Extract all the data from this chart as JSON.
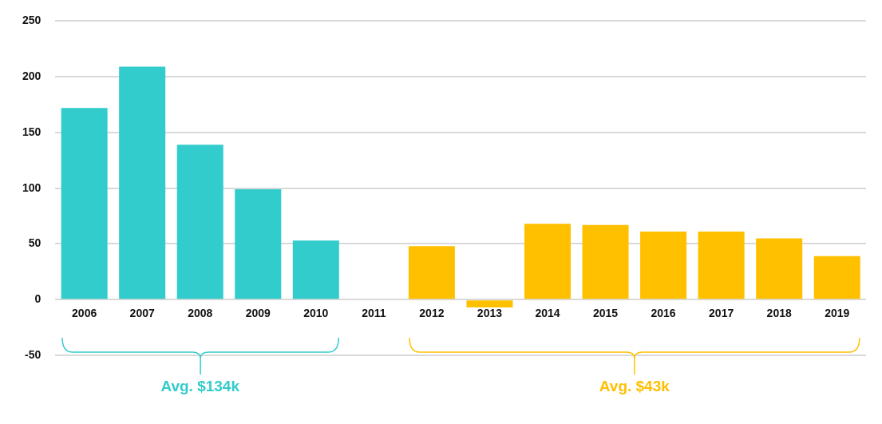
{
  "chart_data": {
    "type": "bar",
    "categories": [
      "2006",
      "2007",
      "2008",
      "2009",
      "2010",
      "2011",
      "2012",
      "2013",
      "2014",
      "2015",
      "2016",
      "2017",
      "2018",
      "2019"
    ],
    "values": [
      172,
      209,
      139,
      99,
      53,
      null,
      48,
      -7,
      68,
      67,
      61,
      61,
      55,
      39
    ],
    "colors": [
      "#33cccc",
      "#33cccc",
      "#33cccc",
      "#33cccc",
      "#33cccc",
      null,
      "#ffc000",
      "#ffc000",
      "#ffc000",
      "#ffc000",
      "#ffc000",
      "#ffc000",
      "#ffc000",
      "#ffc000"
    ],
    "ylim": [
      -50,
      250
    ],
    "yticks": [
      -50,
      0,
      50,
      100,
      150,
      200,
      250
    ],
    "grid": "y",
    "legend": false,
    "annotations": [
      "Avg. $134k",
      "Avg. $43k"
    ]
  }
}
